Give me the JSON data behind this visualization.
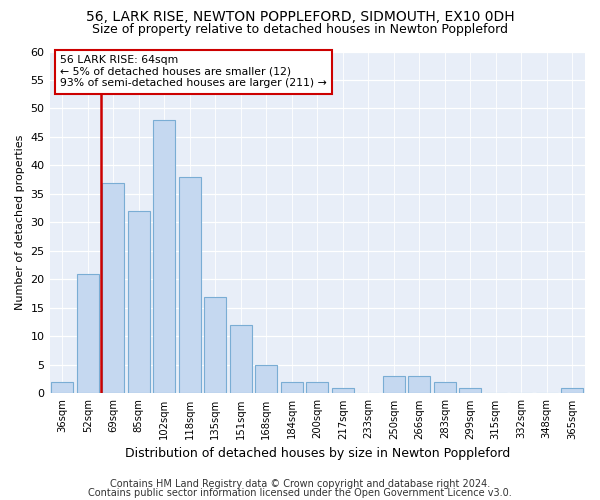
{
  "title": "56, LARK RISE, NEWTON POPPLEFORD, SIDMOUTH, EX10 0DH",
  "subtitle": "Size of property relative to detached houses in Newton Poppleford",
  "xlabel": "Distribution of detached houses by size in Newton Poppleford",
  "ylabel": "Number of detached properties",
  "categories": [
    "36sqm",
    "52sqm",
    "69sqm",
    "85sqm",
    "102sqm",
    "118sqm",
    "135sqm",
    "151sqm",
    "168sqm",
    "184sqm",
    "200sqm",
    "217sqm",
    "233sqm",
    "250sqm",
    "266sqm",
    "283sqm",
    "299sqm",
    "315sqm",
    "332sqm",
    "348sqm",
    "365sqm"
  ],
  "values": [
    2,
    21,
    37,
    32,
    48,
    38,
    17,
    12,
    5,
    2,
    2,
    1,
    0,
    3,
    3,
    2,
    1,
    0,
    0,
    0,
    1
  ],
  "bar_color": "#c5d8f0",
  "bar_edge_color": "#7aadd4",
  "highlight_vline_x": 1.5,
  "highlight_color": "#cc0000",
  "ylim": [
    0,
    60
  ],
  "yticks": [
    0,
    5,
    10,
    15,
    20,
    25,
    30,
    35,
    40,
    45,
    50,
    55,
    60
  ],
  "annotation_text": "56 LARK RISE: 64sqm\n← 5% of detached houses are smaller (12)\n93% of semi-detached houses are larger (211) →",
  "footer_line1": "Contains HM Land Registry data © Crown copyright and database right 2024.",
  "footer_line2": "Contains public sector information licensed under the Open Government Licence v3.0.",
  "bg_color": "#ffffff",
  "plot_bg_color": "#e8eef8",
  "title_fontsize": 10,
  "subtitle_fontsize": 9,
  "ylabel_fontsize": 8,
  "xlabel_fontsize": 9,
  "footer_fontsize": 7
}
